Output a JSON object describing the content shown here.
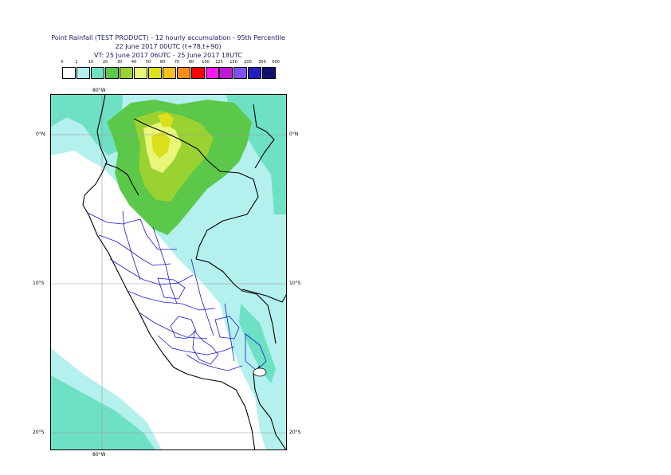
{
  "title": {
    "line1": "Point Rainfall (TEST PRODUCT) - 12 hourly accumulation - 95th Percentile",
    "line2": "22 June 2017 00UTC (t+78,t+90)",
    "line3": "VT: 25 June 2017 06UTC - 25 June 2017 18UTC"
  },
  "legend": {
    "thresholds": [
      "0",
      "1",
      "10",
      "20",
      "30",
      "40",
      "50",
      "60",
      "70",
      "80",
      "100",
      "125",
      "150",
      "200",
      "300",
      "500"
    ],
    "colors": [
      "#ffffff",
      "#b3f0ee",
      "#6ee0c4",
      "#5cc84a",
      "#9ad232",
      "#e8f77a",
      "#dbe01a",
      "#ffc020",
      "#ff8c18",
      "#ff0000",
      "#ff18f0",
      "#c018d8",
      "#8050ff",
      "#2020c0",
      "#101070"
    ]
  },
  "map": {
    "lon_labels": {
      "top": "80°W",
      "bottom": "80°W"
    },
    "lat_labels": [
      "0°N",
      "10°S",
      "20°S"
    ]
  }
}
